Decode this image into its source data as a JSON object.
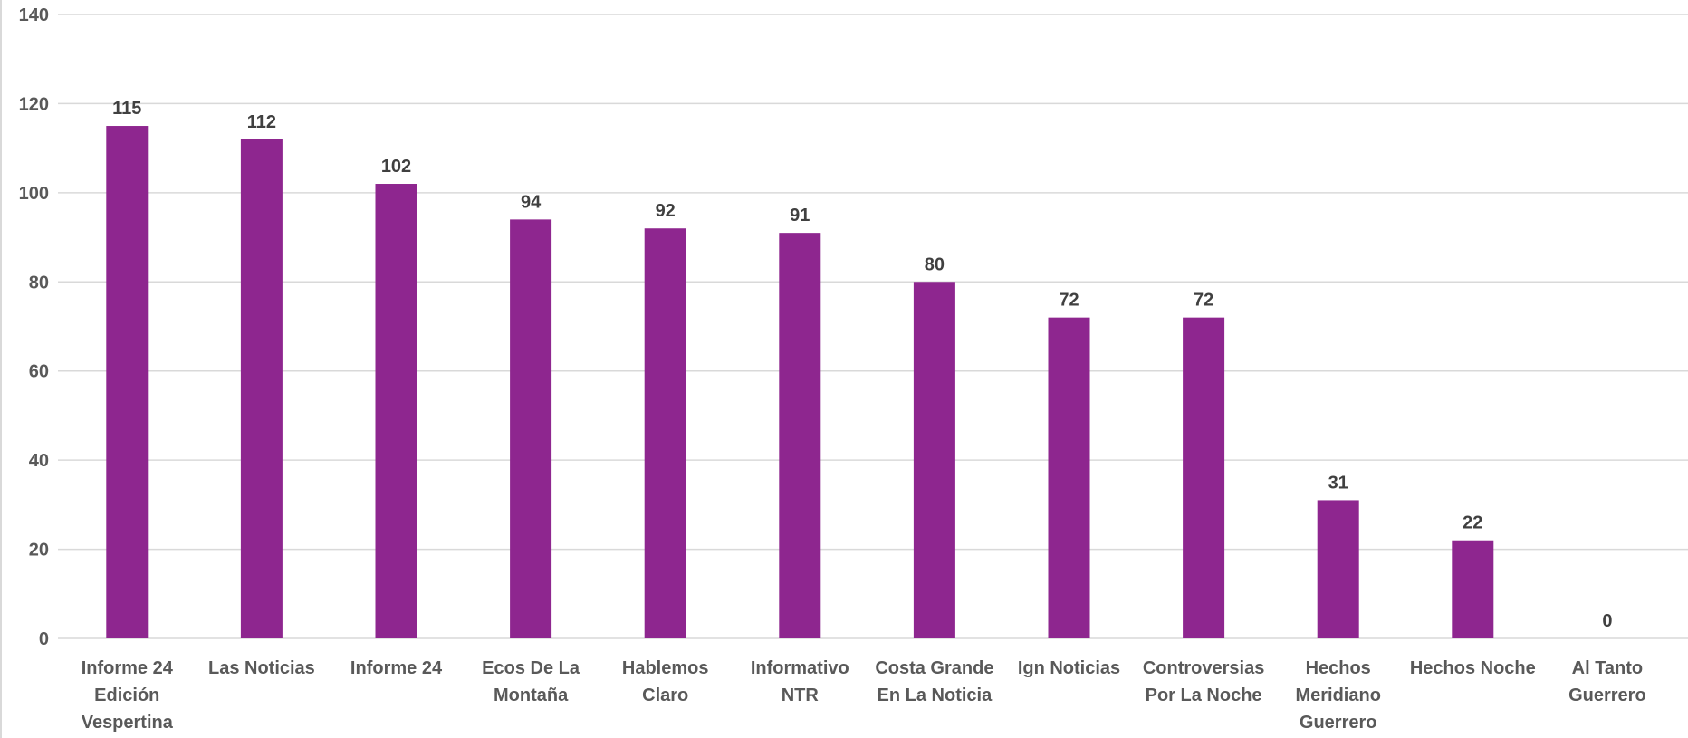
{
  "chart_data": {
    "type": "bar",
    "categories": [
      [
        "Informe 24",
        "Edición",
        "Vespertina"
      ],
      [
        "Las Noticias"
      ],
      [
        "Informe 24"
      ],
      [
        "Ecos De La",
        "Montaña"
      ],
      [
        "Hablemos",
        "Claro"
      ],
      [
        "Informativo",
        "NTR"
      ],
      [
        "Costa Grande",
        "En La Noticia"
      ],
      [
        "Ign Noticias"
      ],
      [
        "Controversias",
        "Por La Noche"
      ],
      [
        "Hechos",
        "Meridiano",
        "Guerrero"
      ],
      [
        "Hechos Noche"
      ],
      [
        "Al Tanto",
        "Guerrero"
      ]
    ],
    "values": [
      115,
      112,
      102,
      94,
      92,
      91,
      80,
      72,
      72,
      31,
      22,
      0
    ],
    "ylim": [
      0,
      140
    ],
    "yticks": [
      0,
      20,
      40,
      60,
      80,
      100,
      120,
      140
    ],
    "grid": true,
    "title": "",
    "xlabel": "",
    "ylabel": "",
    "bar_color": "#8e268f",
    "grid_color": "#d9d9d9"
  }
}
